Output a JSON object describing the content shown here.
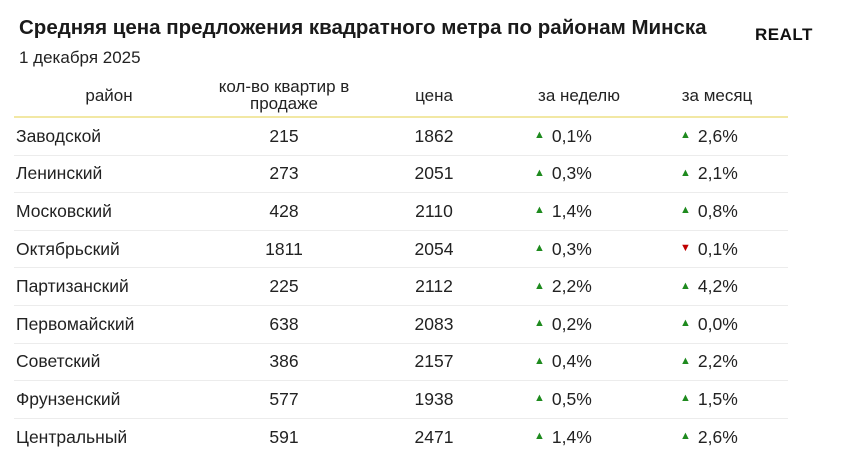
{
  "header": {
    "title": "Средняя цена предложения квадратного метра по районам Минска",
    "date": "1 декабря 2025",
    "logo_text": "REALT"
  },
  "colors": {
    "up": "#1e8a1e",
    "down": "#c00000",
    "header_rule": "#f2e8a4"
  },
  "chart_data": {
    "type": "table",
    "columns": [
      "район",
      "кол-во квартир в продаже",
      "цена",
      "за неделю",
      "за месяц"
    ],
    "rows": [
      {
        "district": "Заводской",
        "count": "215",
        "price": "1862",
        "week": {
          "dir": "up",
          "text": "0,1%"
        },
        "month": {
          "dir": "up",
          "text": "2,6%"
        }
      },
      {
        "district": "Ленинский",
        "count": "273",
        "price": "2051",
        "week": {
          "dir": "up",
          "text": "0,3%"
        },
        "month": {
          "dir": "up",
          "text": "2,1%"
        }
      },
      {
        "district": "Московский",
        "count": "428",
        "price": "2110",
        "week": {
          "dir": "up",
          "text": "1,4%"
        },
        "month": {
          "dir": "up",
          "text": "0,8%"
        }
      },
      {
        "district": "Октябрьский",
        "count": "1811",
        "price": "2054",
        "week": {
          "dir": "up",
          "text": "0,3%"
        },
        "month": {
          "dir": "down",
          "text": "0,1%"
        }
      },
      {
        "district": "Партизанский",
        "count": "225",
        "price": "2112",
        "week": {
          "dir": "up",
          "text": "2,2%"
        },
        "month": {
          "dir": "up",
          "text": "4,2%"
        }
      },
      {
        "district": "Первомайский",
        "count": "638",
        "price": "2083",
        "week": {
          "dir": "up",
          "text": "0,2%"
        },
        "month": {
          "dir": "up",
          "text": "0,0%"
        }
      },
      {
        "district": "Советский",
        "count": "386",
        "price": "2157",
        "week": {
          "dir": "up",
          "text": "0,4%"
        },
        "month": {
          "dir": "up",
          "text": "2,2%"
        }
      },
      {
        "district": "Фрунзенский",
        "count": "577",
        "price": "1938",
        "week": {
          "dir": "up",
          "text": "0,5%"
        },
        "month": {
          "dir": "up",
          "text": "1,5%"
        }
      },
      {
        "district": "Центральный",
        "count": "591",
        "price": "2471",
        "week": {
          "dir": "up",
          "text": "1,4%"
        },
        "month": {
          "dir": "up",
          "text": "2,6%"
        }
      }
    ]
  }
}
